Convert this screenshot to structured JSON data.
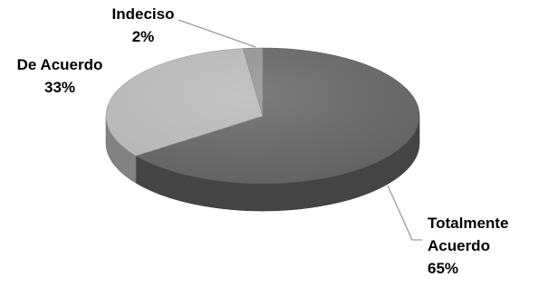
{
  "chart_data": {
    "type": "pie",
    "style": "3d",
    "slices": [
      {
        "label": "Totalmente Acuerdo",
        "label_lines": [
          "Totalmente",
          "Acuerdo"
        ],
        "percent_text": "65%",
        "value": 65,
        "color": "#5f5f5f"
      },
      {
        "label": "De Acuerdo",
        "label_lines": [
          "De Acuerdo"
        ],
        "percent_text": "33%",
        "value": 33,
        "color": "#b5b5b5"
      },
      {
        "label": "Indeciso",
        "label_lines": [
          "Indeciso"
        ],
        "percent_text": "2%",
        "value": 2,
        "color": "#8e8e8e"
      }
    ],
    "title": "",
    "legend": "none"
  }
}
